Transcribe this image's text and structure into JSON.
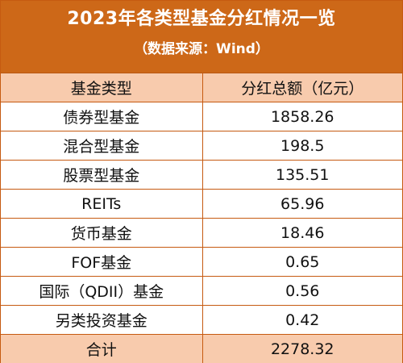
{
  "header": {
    "title": "2023年各类型基金分红情况一览",
    "subtitle": "（数据来源：Wind）"
  },
  "table": {
    "columns": [
      "基金类型",
      "分红总额（亿元）"
    ],
    "rows": [
      {
        "type": "债券型基金",
        "amount": "1858.26"
      },
      {
        "type": "混合型基金",
        "amount": "198.5"
      },
      {
        "type": "股票型基金",
        "amount": "135.51"
      },
      {
        "type": "REITs",
        "amount": "65.96"
      },
      {
        "type": "货币基金",
        "amount": "18.46"
      },
      {
        "type": "FOF基金",
        "amount": "0.65"
      },
      {
        "type": "国际（QDII）基金",
        "amount": "0.56"
      },
      {
        "type": "另类投资基金",
        "amount": "0.42"
      }
    ],
    "total": {
      "label": "合计",
      "amount": "2278.32"
    }
  },
  "colors": {
    "header_bg": "#cd6818",
    "header_text": "#ffffff",
    "row_highlight_bg": "#f8cbad",
    "border": "#c65a11"
  }
}
